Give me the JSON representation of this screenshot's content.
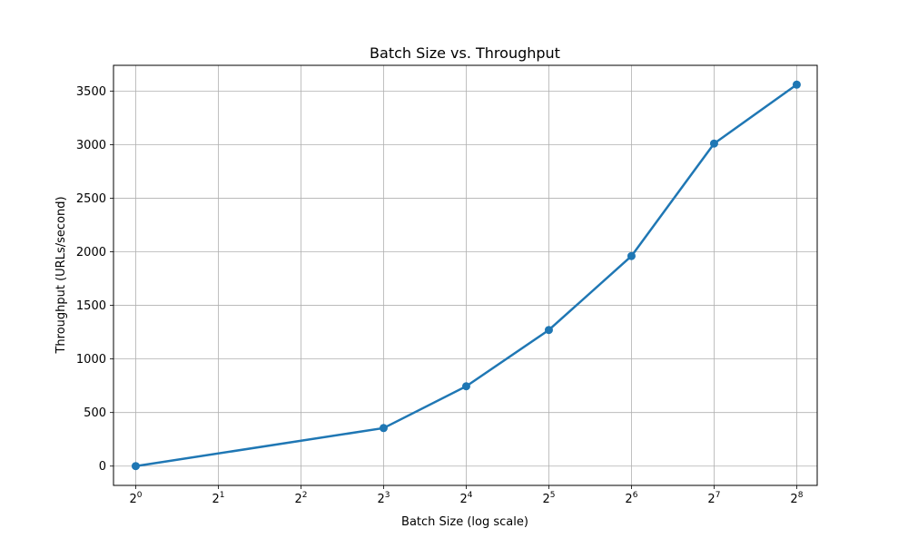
{
  "chart_data": {
    "type": "line",
    "title": "Batch Size vs. Throughput",
    "xlabel": "Batch Size (log scale)",
    "ylabel": "Throughput (URLs/second)",
    "x_scale": "log2",
    "x": [
      1,
      8,
      16,
      32,
      64,
      128,
      256
    ],
    "series": [
      {
        "values": [
          0,
          355,
          745,
          1270,
          1960,
          3010,
          3560
        ],
        "color": "#1f77b4",
        "marker": "circle"
      }
    ],
    "x_ticks": [
      {
        "base": "2",
        "exp": "0",
        "value": 1
      },
      {
        "base": "2",
        "exp": "1",
        "value": 2
      },
      {
        "base": "2",
        "exp": "2",
        "value": 4
      },
      {
        "base": "2",
        "exp": "3",
        "value": 8
      },
      {
        "base": "2",
        "exp": "4",
        "value": 16
      },
      {
        "base": "2",
        "exp": "5",
        "value": 32
      },
      {
        "base": "2",
        "exp": "6",
        "value": 64
      },
      {
        "base": "2",
        "exp": "7",
        "value": 128
      },
      {
        "base": "2",
        "exp": "8",
        "value": 256
      }
    ],
    "y_ticks": [
      0,
      500,
      1000,
      1500,
      2000,
      2500,
      3000,
      3500
    ],
    "xlim": [
      0.83,
      304
    ],
    "ylim": [
      -180,
      3740
    ],
    "grid": true,
    "legend": "none",
    "grid_color": "#b0b0b0",
    "axes_color": "#000000"
  }
}
